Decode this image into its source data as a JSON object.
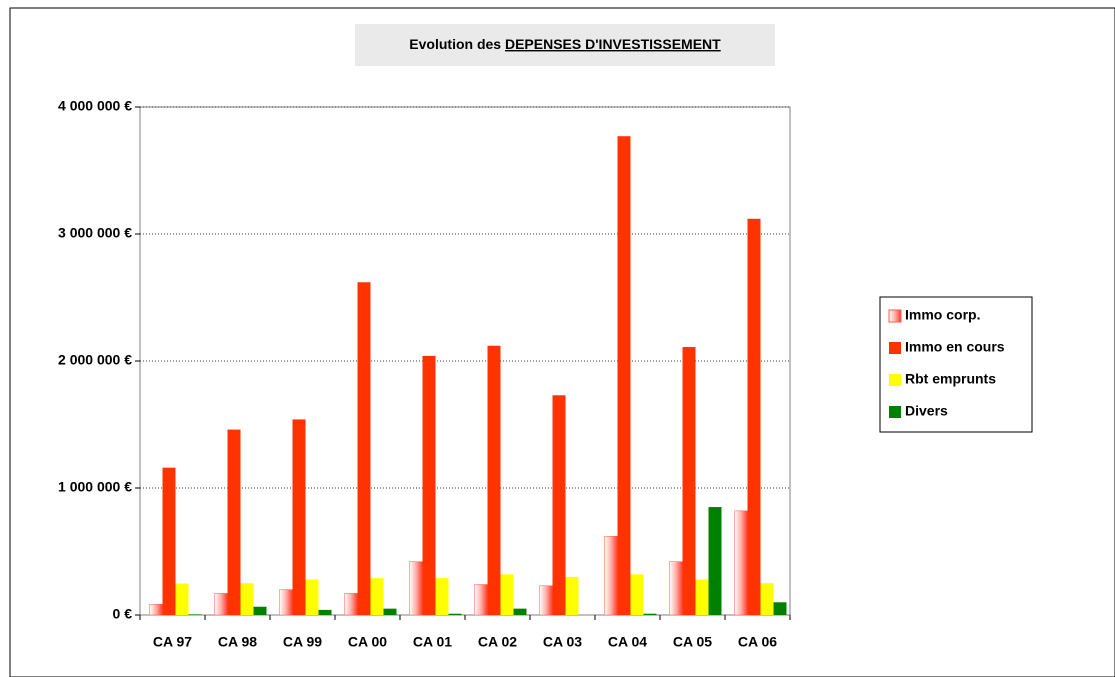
{
  "chart_data": {
    "type": "bar",
    "title": "Evolution des",
    "title_underlined": "DEPENSES D'INVESTISSEMENT",
    "categories": [
      "CA 97",
      "CA 98",
      "CA 99",
      "CA 00",
      "CA 01",
      "CA 02",
      "CA 03",
      "CA 04",
      "CA 05",
      "CA 06"
    ],
    "series": [
      {
        "name": "Immo corp.",
        "color": "#ff5a4a",
        "values": [
          85000,
          170000,
          200000,
          170000,
          420000,
          240000,
          230000,
          620000,
          420000,
          820000
        ]
      },
      {
        "name": "Immo en cours",
        "color": "#ff3300",
        "values": [
          1160000,
          1460000,
          1540000,
          2620000,
          2040000,
          2120000,
          1730000,
          3770000,
          2110000,
          3120000
        ]
      },
      {
        "name": "Rbt emprunts",
        "color": "#ffff00",
        "values": [
          248000,
          250000,
          280000,
          290000,
          290000,
          320000,
          300000,
          320000,
          280000,
          250000
        ]
      },
      {
        "name": "Divers",
        "color": "#008000",
        "values": [
          5000,
          65000,
          40000,
          50000,
          10000,
          50000,
          0,
          10000,
          850000,
          100000
        ]
      }
    ],
    "ylim": [
      0,
      4000000
    ],
    "yticks": [
      {
        "value": 0,
        "label": "0 €"
      },
      {
        "value": 1000000,
        "label": "1 000 000 €"
      },
      {
        "value": 2000000,
        "label": "2 000 000 €"
      },
      {
        "value": 3000000,
        "label": "3 000 000 €"
      },
      {
        "value": 4000000,
        "label": "4 000 000 €"
      }
    ],
    "grid": true,
    "legend": "right"
  }
}
